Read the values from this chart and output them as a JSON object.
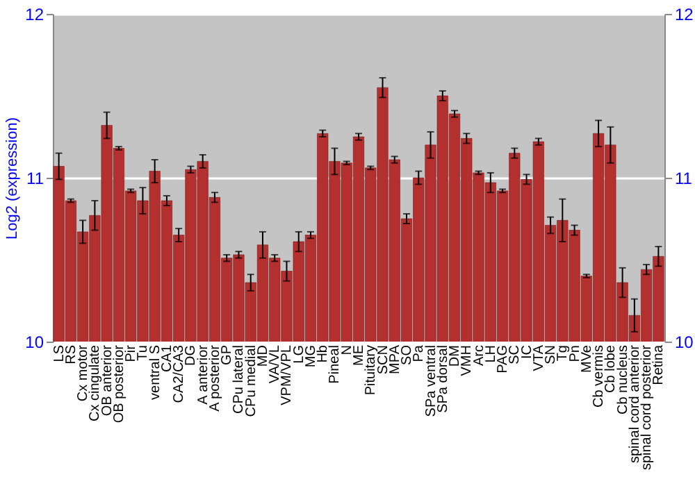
{
  "chart_data": {
    "type": "bar",
    "ylabel": "Log2 (expression)",
    "categories": [
      "LS",
      "RS",
      "Cx motor",
      "Cx cingulate",
      "OB anterior",
      "OB posterior",
      "Pir",
      "Tu",
      "ventral S",
      "CA1",
      "CA2/CA3",
      "DG",
      "A anterior",
      "A posterior",
      "GP",
      "CPu lateral",
      "CPu medial",
      "MD",
      "VA/VL",
      "VPM/VPL",
      "LG",
      "MG",
      "Hb",
      "Pineal",
      "N",
      "ME",
      "Pituitary",
      "SCN",
      "MPA",
      "SO",
      "Pa",
      "SPa ventral",
      "SPa dorsal",
      "DM",
      "VMH",
      "Arc",
      "LH",
      "PAG",
      "SC",
      "IC",
      "VTA",
      "SN",
      "Tg",
      "Pn",
      "MVe",
      "Cb vermis",
      "Cb lobe",
      "Cb nucleus",
      "spinal cord anterior",
      "spinal cord posterior",
      "Retina"
    ],
    "values": [
      11.07,
      10.86,
      10.67,
      10.77,
      11.32,
      11.18,
      10.92,
      10.86,
      11.04,
      10.86,
      10.65,
      11.05,
      11.1,
      10.88,
      10.51,
      10.53,
      10.36,
      10.59,
      10.51,
      10.43,
      10.61,
      10.65,
      11.27,
      11.1,
      11.09,
      11.25,
      11.06,
      11.55,
      11.11,
      10.75,
      11.0,
      11.2,
      11.5,
      11.39,
      11.24,
      11.03,
      10.97,
      10.92,
      11.15,
      10.99,
      11.22,
      10.71,
      10.74,
      10.68,
      10.4,
      11.27,
      11.2,
      10.36,
      10.16,
      10.44,
      10.52
    ],
    "errors": [
      0.08,
      0.01,
      0.07,
      0.09,
      0.08,
      0.01,
      0.01,
      0.08,
      0.07,
      0.03,
      0.04,
      0.02,
      0.04,
      0.03,
      0.02,
      0.02,
      0.05,
      0.08,
      0.02,
      0.06,
      0.06,
      0.02,
      0.02,
      0.08,
      0.01,
      0.02,
      0.01,
      0.06,
      0.02,
      0.03,
      0.04,
      0.08,
      0.03,
      0.02,
      0.03,
      0.01,
      0.06,
      0.01,
      0.03,
      0.03,
      0.02,
      0.05,
      0.13,
      0.03,
      0.01,
      0.08,
      0.11,
      0.09,
      0.1,
      0.03,
      0.06
    ],
    "color": "#b3302e",
    "ylim": [
      10,
      12
    ],
    "yticks": [
      10,
      11,
      12
    ],
    "y2lim": [
      10,
      12
    ],
    "y2ticks": [
      10,
      11,
      12
    ],
    "grid": true
  }
}
